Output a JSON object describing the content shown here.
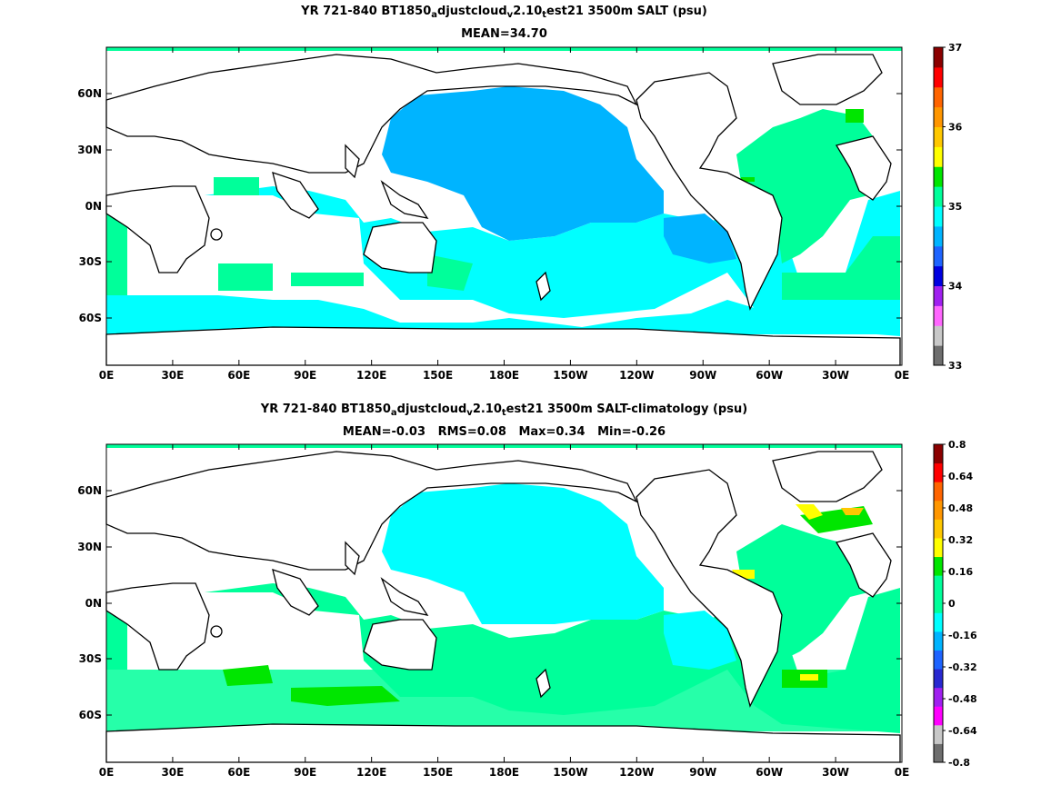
{
  "panels": [
    {
      "title_line1": {
        "pre": "YR 721-840 BT1850",
        "sub1": "a",
        "mid1": "djustcloud",
        "sub2": "v",
        "mid2": "2.10",
        "sub3": "t",
        "post": "est21 3500m SALT (psu)"
      },
      "title_line2": "MEAN=34.70",
      "colorbar": {
        "labels": [
          "37",
          "36",
          "35",
          "34",
          "33"
        ],
        "colors": [
          "#6e6e6e",
          "#c8c8c8",
          "#ff66ff",
          "#a020f0",
          "#0000e0",
          "#1e64ff",
          "#00b4ff",
          "#00ffff",
          "#00ff9a",
          "#00e600",
          "#ffff00",
          "#ffc800",
          "#ff9600",
          "#ff6400",
          "#ff0000",
          "#8b0000"
        ]
      }
    },
    {
      "title_line1": {
        "pre": "YR 721-840 BT1850",
        "sub1": "a",
        "mid1": "djustcloud",
        "sub2": "v",
        "mid2": "2.10",
        "sub3": "t",
        "post": "est21 3500m SALT-climatology (psu)"
      },
      "title_line2": "MEAN=-0.03   RMS=0.08   Max=0.34   Min=-0.26",
      "colorbar": {
        "labels": [
          "0.8",
          "0.64",
          "0.48",
          "0.32",
          "0.16",
          "0",
          "-0.16",
          "-0.32",
          "-0.48",
          "-0.64",
          "-0.8"
        ],
        "colors": [
          "#6e6e6e",
          "#c8c8c8",
          "#ff00ff",
          "#a020f0",
          "#2828d0",
          "#1e64ff",
          "#00b4ff",
          "#00ffff",
          "#00ff9a",
          "#00ff9a",
          "#00e600",
          "#ffff00",
          "#ffc800",
          "#ff9600",
          "#ff6400",
          "#ff0000",
          "#8b0000"
        ]
      }
    }
  ],
  "axes": {
    "xticks": [
      "0E",
      "30E",
      "60E",
      "90E",
      "120E",
      "150E",
      "180E",
      "150W",
      "120W",
      "90W",
      "60W",
      "30W",
      "0E"
    ],
    "yticks": [
      "60N",
      "30N",
      "0N",
      "30S",
      "60S"
    ]
  }
}
